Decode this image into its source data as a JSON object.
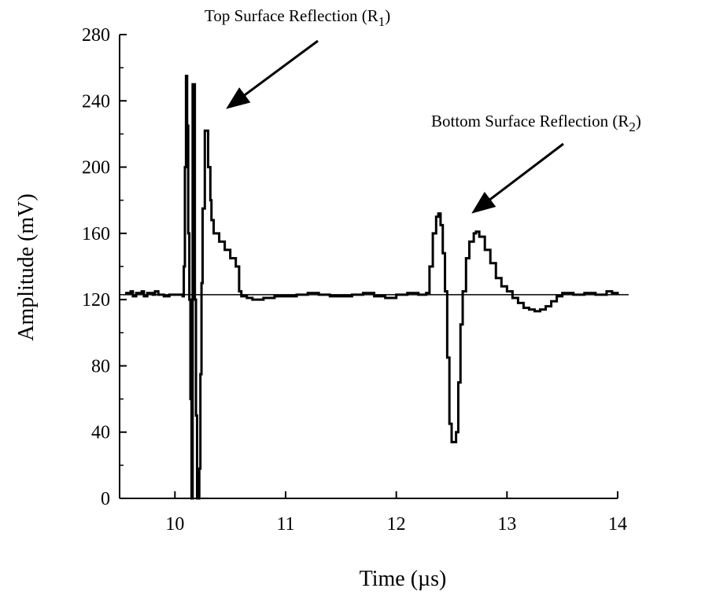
{
  "chart_data": {
    "type": "line",
    "title": "",
    "xlabel": "Time (µs)",
    "ylabel": "Amplitude (mV)",
    "xlim": [
      9.5,
      14
    ],
    "ylim": [
      0,
      280
    ],
    "x_ticks": [
      10,
      11,
      12,
      13,
      14
    ],
    "x_tick_labels": [
      "10",
      "11",
      "12",
      "13",
      "14"
    ],
    "y_ticks": [
      0,
      40,
      80,
      120,
      160,
      200,
      240,
      280
    ],
    "y_tick_labels": [
      "0",
      "40",
      "80",
      "120",
      "160",
      "200",
      "240",
      "280"
    ],
    "grid": false,
    "legend": "none",
    "baseline": {
      "value": 123,
      "x_range": [
        9.5,
        14.1
      ]
    },
    "series": [
      {
        "color": "#000000",
        "x": [
          9.55,
          9.6,
          9.62,
          9.65,
          9.7,
          9.72,
          9.75,
          9.8,
          9.82,
          9.85,
          9.9,
          9.95,
          10.0,
          10.05,
          10.07,
          10.08,
          10.09,
          10.1,
          10.11,
          10.12,
          10.13,
          10.14,
          10.15,
          10.16,
          10.17,
          10.18,
          10.19,
          10.2,
          10.21,
          10.22,
          10.23,
          10.24,
          10.25,
          10.27,
          10.29,
          10.3,
          10.32,
          10.33,
          10.35,
          10.4,
          10.45,
          10.5,
          10.55,
          10.58,
          10.6,
          10.65,
          10.7,
          10.8,
          10.9,
          11.0,
          11.1,
          11.2,
          11.3,
          11.4,
          11.5,
          11.6,
          11.7,
          11.8,
          11.9,
          12.0,
          12.1,
          12.2,
          12.27,
          12.3,
          12.33,
          12.36,
          12.38,
          12.4,
          12.42,
          12.44,
          12.46,
          12.48,
          12.5,
          12.52,
          12.54,
          12.56,
          12.58,
          12.6,
          12.63,
          12.66,
          12.7,
          12.72,
          12.75,
          12.8,
          12.85,
          12.9,
          12.95,
          13.0,
          13.05,
          13.1,
          13.15,
          13.2,
          13.25,
          13.3,
          13.35,
          13.4,
          13.45,
          13.5,
          13.6,
          13.7,
          13.8,
          13.9,
          13.95,
          14.0
        ],
        "values": [
          124,
          125,
          122,
          124,
          125,
          122,
          124,
          123,
          125,
          123,
          122,
          123,
          123,
          123,
          122,
          140,
          200,
          255,
          225,
          160,
          120,
          60,
          0,
          250,
          250,
          120,
          50,
          0,
          0,
          18,
          75,
          130,
          175,
          222,
          222,
          200,
          180,
          168,
          160,
          155,
          150,
          145,
          140,
          125,
          122,
          121,
          120,
          121,
          122,
          122,
          123,
          124,
          123,
          122,
          122,
          123,
          124,
          122,
          121,
          123,
          124,
          123,
          124,
          140,
          160,
          170,
          172,
          165,
          148,
          125,
          85,
          45,
          34,
          34,
          40,
          70,
          105,
          125,
          145,
          155,
          160,
          161,
          158,
          150,
          142,
          133,
          128,
          125,
          121,
          118,
          115,
          114,
          113,
          114,
          116,
          119,
          122,
          124,
          123,
          124,
          123,
          125,
          124,
          123
        ]
      }
    ],
    "annotations": [
      {
        "label": "Top Surface Reflection (R1)",
        "text": "Top Surface Reflection (R",
        "subscript": "1",
        "close": ")",
        "arrow_target": [
          10.35,
          225
        ]
      },
      {
        "label": "Bottom Surface Reflection (R2)",
        "text": "Bottom Surface Reflection (R",
        "subscript": "2",
        "close": ")",
        "arrow_target": [
          12.6,
          168
        ]
      }
    ]
  }
}
